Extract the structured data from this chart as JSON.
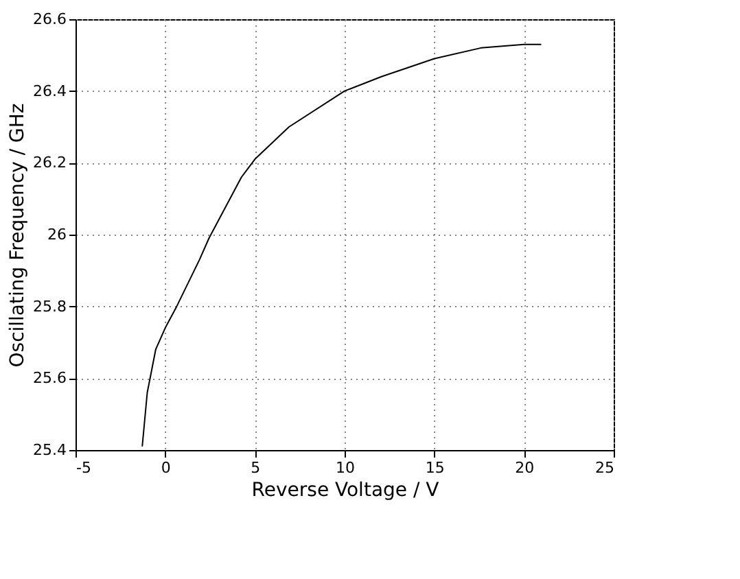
{
  "chart_data": {
    "type": "line",
    "xlabel": "Reverse Voltage / V",
    "ylabel": "Oscillating Frequency / GHz",
    "x": [
      -1.28,
      -1.0,
      -0.53,
      0,
      0.64,
      1.91,
      2.44,
      3.08,
      4.25,
      5,
      6.9,
      10,
      12.05,
      15,
      17.6,
      20,
      20.96
    ],
    "series": [
      {
        "color": "#000000",
        "values": [
          25.41,
          25.56,
          25.68,
          25.74,
          25.8,
          25.93,
          25.99,
          26.05,
          26.16,
          26.21,
          26.3,
          26.4,
          26.44,
          26.49,
          26.52,
          26.53,
          26.53
        ]
      }
    ],
    "xlim": [
      -5,
      25
    ],
    "xticks": [
      -5,
      0,
      5,
      10,
      15,
      20,
      25
    ],
    "ylim": [
      25.4,
      26.6
    ],
    "yticks": [
      25.4,
      25.6,
      25.8,
      26,
      26.2,
      26.4,
      26.6
    ],
    "grid": true,
    "marker": "none",
    "line_style": "solid"
  }
}
